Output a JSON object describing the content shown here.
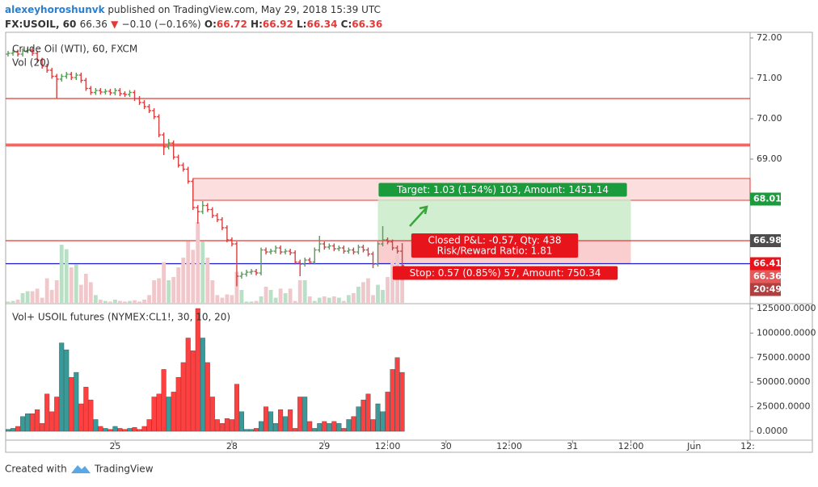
{
  "header": {
    "author": "alexeyhoroshunvk",
    "published": "published on TradingView.com, May 29, 2018 15:39 UTC",
    "symbol": "FX:USOIL, 60",
    "arrow": "▼",
    "change": "−0.10 (−0.16%)",
    "o_label": "O:",
    "h_label": "H:",
    "l_label": "L:",
    "c_label": "C:"
  },
  "footer": {
    "created": "Created with",
    "brand": "TradingView"
  },
  "chart_data": [
    {
      "type": "ohlc",
      "title": "Crude Oil (WTI), 60, FXCM",
      "subtitle": "Vol (20)",
      "up_color": "#5a9a5a",
      "down_color": "#d64040",
      "overlay_up_color": "#b9dfc4",
      "overlay_down_color": "#f0c8cb",
      "xlim": [
        -0.5,
        152.5
      ],
      "ylim": [
        65.44,
        72.14
      ],
      "yticks": [
        {
          "value": 72,
          "label": "72.00"
        },
        {
          "value": 71,
          "label": "71.00"
        },
        {
          "value": 70,
          "label": "70.00"
        },
        {
          "value": 69,
          "label": "69.00"
        }
      ],
      "open": [
        71.6,
        71.62,
        71.65,
        71.6,
        71.68,
        71.7,
        71.62,
        71.45,
        71.3,
        71.2,
        71.05,
        70.98,
        71.05,
        71.1,
        71.02,
        71.08,
        70.95,
        70.75,
        70.65,
        70.7,
        70.66,
        70.68,
        70.64,
        70.7,
        70.62,
        70.6,
        70.65,
        70.5,
        70.4,
        70.3,
        70.2,
        70.05,
        69.6,
        69.3,
        69.4,
        69.05,
        68.85,
        68.75,
        68.45,
        67.8,
        67.7,
        67.85,
        67.75,
        67.6,
        67.5,
        67.3,
        67.0,
        66.9,
        66.1,
        66.15,
        66.2,
        66.22,
        66.18,
        66.75,
        66.7,
        66.72,
        66.8,
        66.7,
        66.72,
        66.68,
        66.45,
        66.4,
        66.5,
        66.45,
        66.75,
        66.9,
        66.82,
        66.85,
        66.78,
        66.8,
        66.72,
        66.75,
        66.7,
        66.82,
        66.75,
        66.65,
        66.4,
        66.9,
        67.0,
        66.95,
        66.8,
        66.72
      ],
      "high": [
        71.68,
        71.71,
        71.71,
        71.74,
        71.76,
        71.76,
        71.68,
        71.51,
        71.36,
        71.26,
        71.11,
        71.11,
        71.16,
        71.16,
        71.14,
        71.14,
        71.01,
        70.81,
        70.76,
        70.76,
        70.74,
        70.74,
        70.76,
        70.76,
        70.68,
        70.71,
        70.71,
        70.56,
        70.46,
        70.36,
        70.26,
        70.11,
        69.66,
        69.5,
        69.46,
        69.11,
        68.91,
        68.81,
        68.51,
        67.86,
        67.96,
        67.91,
        67.81,
        67.66,
        67.56,
        67.36,
        67.06,
        66.96,
        66.21,
        66.26,
        66.28,
        66.28,
        66.81,
        66.81,
        66.78,
        66.86,
        66.86,
        66.78,
        66.78,
        66.74,
        66.51,
        66.56,
        66.56,
        66.81,
        67.1,
        66.96,
        66.91,
        66.91,
        66.86,
        66.86,
        66.81,
        66.81,
        66.88,
        66.88,
        66.81,
        66.71,
        66.96,
        67.34,
        67.06,
        67.01,
        66.86,
        66.92
      ],
      "low": [
        71.54,
        71.56,
        71.54,
        71.54,
        71.62,
        71.56,
        71.39,
        71.24,
        71.14,
        70.99,
        70.5,
        70.92,
        70.99,
        70.96,
        70.96,
        70.89,
        70.69,
        70.59,
        70.59,
        70.6,
        70.6,
        70.58,
        70.58,
        70.56,
        70.54,
        70.54,
        70.44,
        70.34,
        70.24,
        70.14,
        69.99,
        69.54,
        69.1,
        69.24,
        68.99,
        68.79,
        68.69,
        68.39,
        67.74,
        67.4,
        67.64,
        67.69,
        67.54,
        67.44,
        67.24,
        66.94,
        66.84,
        65.85,
        66.04,
        66.09,
        66.14,
        66.12,
        66.12,
        66.64,
        66.64,
        66.66,
        66.64,
        66.64,
        66.62,
        66.39,
        66.1,
        66.34,
        66.39,
        66.39,
        66.69,
        66.76,
        66.76,
        66.72,
        66.72,
        66.66,
        66.66,
        66.64,
        66.64,
        66.69,
        66.59,
        66.3,
        66.34,
        66.84,
        66.89,
        66.74,
        66.66,
        66.34
      ],
      "close": [
        71.62,
        71.65,
        71.6,
        71.68,
        71.7,
        71.62,
        71.45,
        71.3,
        71.2,
        71.05,
        70.98,
        71.05,
        71.1,
        71.02,
        71.08,
        70.95,
        70.75,
        70.65,
        70.7,
        70.66,
        70.68,
        70.64,
        70.7,
        70.62,
        70.6,
        70.65,
        70.5,
        70.4,
        70.3,
        70.2,
        70.05,
        69.6,
        69.3,
        69.4,
        69.05,
        68.85,
        68.75,
        68.45,
        67.8,
        67.7,
        67.85,
        67.75,
        67.6,
        67.5,
        67.3,
        67.0,
        66.9,
        66.1,
        66.15,
        66.2,
        66.22,
        66.18,
        66.75,
        66.7,
        66.72,
        66.8,
        66.7,
        66.72,
        66.68,
        66.45,
        66.4,
        66.5,
        66.45,
        66.75,
        66.9,
        66.82,
        66.85,
        66.78,
        66.8,
        66.72,
        66.75,
        66.7,
        66.82,
        66.75,
        66.65,
        66.4,
        66.9,
        67.0,
        66.95,
        66.8,
        66.72,
        66.36
      ],
      "hlines": [
        {
          "value": 70.5,
          "color": "#e53935"
        },
        {
          "value": 69.37,
          "color": "#e53935"
        },
        {
          "value": 69.33,
          "color": "#e53935"
        },
        {
          "value": 66.98,
          "color": "#e53935"
        },
        {
          "value": 66.41,
          "color": "#1a1acc"
        }
      ],
      "zone": {
        "start": 38,
        "from": 67.98,
        "to": 68.52,
        "color": "#fcdede",
        "border": "#e53935"
      },
      "position": {
        "start": 76,
        "end": 128,
        "entry": 66.98,
        "target": 68.01,
        "stop": 66.41,
        "target_label": "Target: 1.03 (1.54%) 103, Amount: 1451.14",
        "pnl_label": "Closed P&L: -0.57, Qty: 438",
        "rr_label": "Risk/Reward Ratio: 1.81",
        "stop_label": "Stop: 0.57 (0.85%) 57, Amount: 750.34",
        "target_color": "#1a9c3c",
        "stop_color": "#e8141b"
      },
      "price_labels": [
        {
          "value": 68.01,
          "color": "#1a9c3c"
        },
        {
          "value": 66.98,
          "color": "#4d4d4d"
        },
        {
          "value": 66.41,
          "color": "#e8141b"
        },
        {
          "value": 66.36,
          "color": "#e25a5a"
        }
      ],
      "countdown": "20:49"
    },
    {
      "type": "bar",
      "title": "Vol+ USOIL futures (NYMEX:CL1!, 30, 10, 20)",
      "up_color": "#3a9a9a",
      "down_color": "#ff4040",
      "xlim": [
        -0.5,
        152.5
      ],
      "ylim": [
        -9000,
        128300
      ],
      "yticks": [
        {
          "value": 125000,
          "label": "125000.0000"
        },
        {
          "value": 100000,
          "label": "100000.0000"
        },
        {
          "value": 75000,
          "label": "75000.0000"
        },
        {
          "value": 50000,
          "label": "50000.0000"
        },
        {
          "value": 25000,
          "label": "25000.0000"
        },
        {
          "value": 0,
          "label": "0.0000"
        }
      ],
      "xticks": [
        {
          "value": 22,
          "label": "25"
        },
        {
          "value": 46,
          "label": "28"
        },
        {
          "value": 65,
          "label": "29"
        },
        {
          "value": 78,
          "label": "12:00"
        },
        {
          "value": 90,
          "label": "30"
        },
        {
          "value": 103,
          "label": "12:00"
        },
        {
          "value": 116,
          "label": "31"
        },
        {
          "value": 128,
          "label": "12:00"
        },
        {
          "value": 141,
          "label": "Jun"
        },
        {
          "value": 152,
          "label": "12:"
        }
      ],
      "values": [
        2000,
        3000,
        5000,
        15000,
        18000,
        18000,
        22000,
        8000,
        38000,
        20000,
        35000,
        90000,
        83000,
        55000,
        60000,
        28000,
        45000,
        32000,
        12000,
        5000,
        3000,
        2000,
        5000,
        3000,
        2000,
        3000,
        4000,
        2000,
        5000,
        12000,
        35000,
        38000,
        63000,
        35000,
        40000,
        55000,
        70000,
        95000,
        82000,
        125000,
        95000,
        70000,
        35000,
        12000,
        8000,
        13000,
        12000,
        48000,
        20000,
        2000,
        2000,
        3000,
        10000,
        25000,
        20000,
        8000,
        22000,
        15000,
        22000,
        3000,
        35000,
        35000,
        10000,
        3000,
        8000,
        10000,
        8000,
        10000,
        8000,
        3000,
        12000,
        15000,
        25000,
        32000,
        38000,
        12000,
        28000,
        20000,
        40000,
        63000,
        75000,
        60000
      ]
    }
  ]
}
